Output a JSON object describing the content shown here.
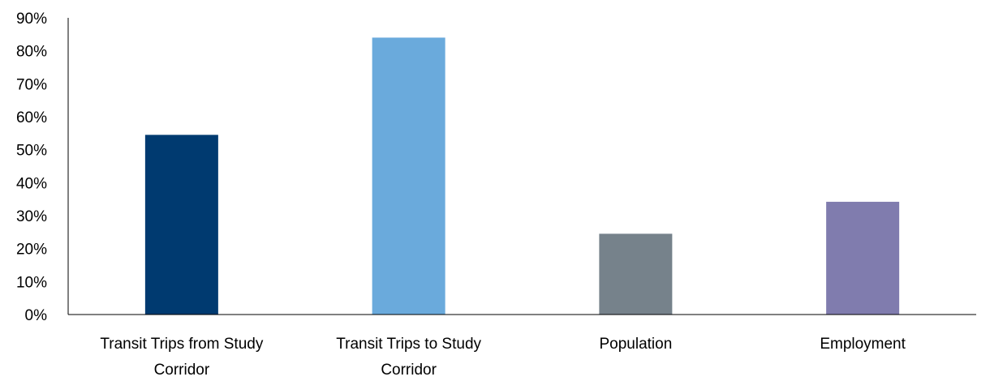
{
  "chart_data": {
    "type": "bar",
    "title": "",
    "xlabel": "",
    "ylabel": "",
    "categories": [
      [
        "Transit Trips from Study",
        "Corridor"
      ],
      [
        "Transit Trips to Study",
        "Corridor"
      ],
      [
        "Population"
      ],
      [
        "Employment"
      ]
    ],
    "values": [
      54.5,
      84.0,
      24.5,
      34.2
    ],
    "colors": [
      "#003a70",
      "#6aaadc",
      "#76828b",
      "#807cae"
    ],
    "ylim": [
      0,
      90
    ],
    "yticks": [
      "0%",
      "10%",
      "20%",
      "30%",
      "40%",
      "50%",
      "60%",
      "70%",
      "80%",
      "90%"
    ],
    "grid": false,
    "legend": "none"
  }
}
